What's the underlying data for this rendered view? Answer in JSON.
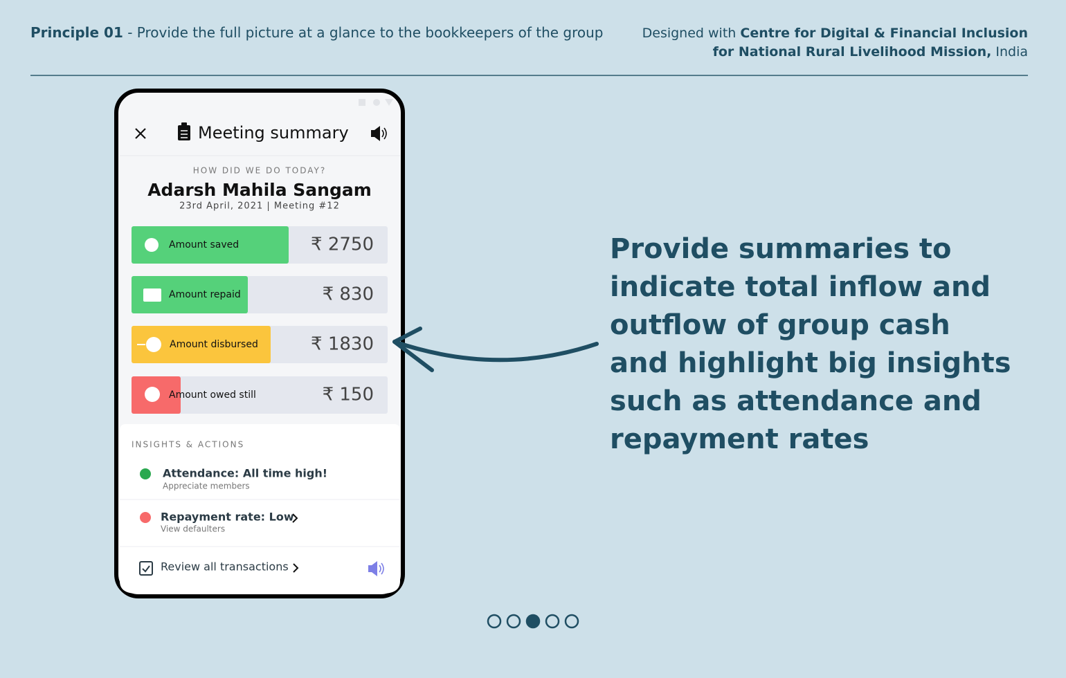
{
  "header": {
    "principle_label": "Principle 01",
    "principle_text": " - Provide the full picture at a glance to the bookkeepers of the group",
    "credit_prefix": "Designed with ",
    "credit_org_line1": "Centre for Digital & Financial Inclusion",
    "credit_org_line2": "for National Rural Livelihood Mission,",
    "credit_suffix": " India"
  },
  "phone": {
    "title": "Meeting summary",
    "eyebrow": "HOW DID WE DO TODAY?",
    "group_name": "Adarsh Mahila Sangam",
    "meta": "23rd April, 2021 | Meeting #12",
    "amounts": [
      {
        "label": "Amount saved",
        "value": "₹ 2750"
      },
      {
        "label": "Amount repaid",
        "value": "₹ 830"
      },
      {
        "label": "Amount disbursed",
        "value": "₹ 1830"
      },
      {
        "label": "Amount owed still",
        "value": "₹ 150"
      }
    ],
    "insights_heading": "INSIGHTS & ACTIONS",
    "insights": [
      {
        "title": "Attendance: All time high!",
        "subtitle": "Appreciate members"
      },
      {
        "title": "Repayment rate: Low",
        "subtitle": "View defaulters"
      }
    ],
    "footer_link": "Review all transactions"
  },
  "callout": {
    "lines": [
      "Provide summaries to",
      "indicate total inflow and",
      "outflow of group cash",
      "and highlight big insights",
      "such as attendance and",
      "repayment rates"
    ]
  }
}
